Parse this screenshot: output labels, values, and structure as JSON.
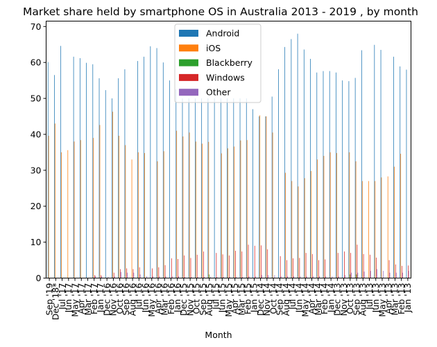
{
  "chart_data": {
    "type": "bar",
    "title": "Market share held by smartphone OS in Australia 2013 - 2019 , by month",
    "xlabel": "Month",
    "ylabel": "",
    "ylim": [
      0,
      71.5
    ],
    "yticks": [
      0,
      10,
      20,
      30,
      40,
      50,
      60,
      70
    ],
    "grid": false,
    "legend_position": "top-center",
    "categories": [
      "Sep '19",
      "Dec '18*",
      "Jul '17",
      "Jun '17",
      "May '17",
      "Apr '17",
      "Mar '17",
      "Feb '17",
      "Jan '17",
      "Dec '16",
      "Nov '16",
      "Oct '16",
      "Sep '16",
      "Aug '16",
      "Jul '16",
      "Jun '16",
      "May '16",
      "Apr '16",
      "Mar '16",
      "Feb '16",
      "Jan '16",
      "Dec '15",
      "Nov '15",
      "Oct '15",
      "Sep '15",
      "Aug '15",
      "Jul '15",
      "Jun '15",
      "May '15",
      "Apr '15",
      "Mar '15",
      "Feb '15",
      "Jan '15",
      "Dec '14",
      "Nov '14",
      "Oct '14",
      "Sep '14",
      "Aug '14",
      "Jul '14",
      "Jun '14",
      "May '14",
      "Apr '14",
      "Mar '14",
      "Feb '14",
      "Jan '14",
      "Dec '13",
      "Nov '13",
      "Oct '13",
      "Sep '13",
      "Aug '13",
      "Jul '13",
      "Jun '13",
      "May '13",
      "Apr '13",
      "Mar '13",
      "Feb '13",
      "Jan '13"
    ],
    "series": [
      {
        "name": "Android",
        "color": "#1f77b4",
        "values": [
          60.1,
          56.5,
          64.6,
          0,
          61.6,
          61.2,
          59.9,
          59.5,
          55.6,
          52.3,
          50.0,
          55.6,
          58.1,
          0,
          60.4,
          61.6,
          64.5,
          64.0,
          60.0,
          55.0,
          52.5,
          50,
          50,
          50,
          50,
          50,
          50,
          50,
          50,
          50,
          50,
          50,
          47.0,
          45,
          45,
          50.5,
          58.1,
          64.3,
          66.5,
          68.0,
          63.6,
          61.0,
          57.2,
          57.6,
          57.6,
          57.2,
          55.0,
          54.8,
          55.7,
          63.4,
          0,
          64.9,
          63.5,
          0,
          61.6,
          58.9,
          58.0
        ]
      },
      {
        "name": "iOS",
        "color": "#ff7f0e",
        "values": [
          39.6,
          43.0,
          35.0,
          35.6,
          38.0,
          38.4,
          0,
          39.0,
          42.6,
          0,
          46.3,
          39.6,
          37.0,
          33.0,
          35.0,
          34.8,
          0,
          32.5,
          35.3,
          0,
          41.0,
          39.4,
          40.5,
          38.0,
          37.4,
          37.9,
          0,
          34.7,
          36.1,
          36.6,
          38.3,
          38.4,
          0,
          45.3,
          45.0,
          40.5,
          0,
          29.3,
          27.0,
          25.5,
          27.8,
          29.8,
          33.0,
          34.0,
          35.0,
          34.8,
          0,
          35.0,
          32.5,
          27.0,
          27.0,
          27.0,
          28.0,
          28.3,
          31.0,
          34.6,
          0
        ]
      },
      {
        "name": "Blackberry",
        "color": "#2ca02c",
        "values": [
          0,
          0,
          0,
          0,
          0,
          0,
          0,
          0,
          0,
          0,
          0,
          0,
          0,
          0,
          0,
          0,
          0,
          0,
          0,
          0,
          0,
          0,
          0,
          0,
          0,
          1.0,
          0,
          0,
          0,
          0,
          0,
          0,
          0,
          0,
          0,
          0,
          0,
          0,
          0,
          0,
          0,
          0,
          0,
          0,
          0,
          0,
          0,
          1.0,
          1.0,
          0,
          0,
          0,
          0,
          0,
          0,
          0,
          0
        ]
      },
      {
        "name": "Windows",
        "color": "#d62728",
        "values": [
          0,
          0,
          0,
          0,
          0,
          0,
          0,
          0.8,
          0.8,
          0,
          1.5,
          2.5,
          2.7,
          2.5,
          3.0,
          0,
          2.7,
          3.0,
          3.6,
          5.5,
          5.3,
          6.3,
          5.6,
          6.5,
          7.4,
          0,
          7.0,
          6.6,
          6.3,
          7.6,
          7.4,
          9.3,
          9.0,
          9.1,
          8.0,
          0,
          6.1,
          5.0,
          5.5,
          5.6,
          7.0,
          6.7,
          5.0,
          5.2,
          0,
          7.0,
          7.4,
          7.0,
          9.3,
          6.7,
          6.5,
          5.7,
          0,
          5.0,
          3.8,
          3.4,
          3.5
        ]
      },
      {
        "name": "Other",
        "color": "#9467bd",
        "values": [
          0,
          0,
          0,
          0,
          0,
          0,
          0,
          0.6,
          0.5,
          0.3,
          0.5,
          1.7,
          1.5,
          1.5,
          1.0,
          0.5,
          0.5,
          0.5,
          0.5,
          0.5,
          0.5,
          0.3,
          0.3,
          0.3,
          0.3,
          0.3,
          0.3,
          0.3,
          0.3,
          0.3,
          0.3,
          0.5,
          0.5,
          0.8,
          0.8,
          0.8,
          0.5,
          0.5,
          0.5,
          0.5,
          0.5,
          0.5,
          0.5,
          0.5,
          0.5,
          0.5,
          0.8,
          1.5,
          1.5,
          1.8,
          2.0,
          2.5,
          2.0,
          1.5,
          1.5,
          1.5,
          2.0
        ]
      }
    ]
  }
}
